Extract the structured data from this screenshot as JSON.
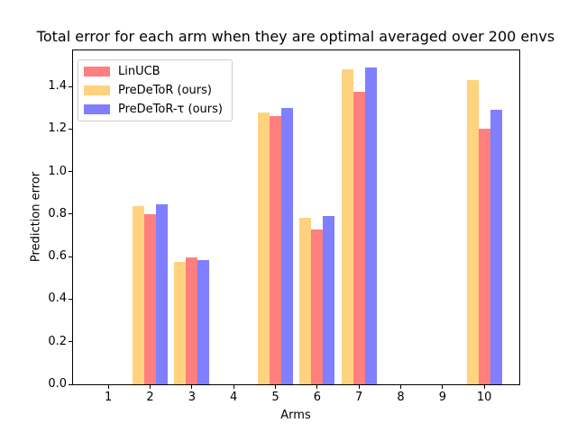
{
  "chart_data": {
    "type": "bar",
    "title": "Total error for each arm when they are optimal averaged over 200 envs",
    "xlabel": "Arms",
    "ylabel": "Prediction error",
    "categories": [
      "1",
      "2",
      "3",
      "4",
      "5",
      "6",
      "7",
      "8",
      "9",
      "10"
    ],
    "series": [
      {
        "name": "LinUCB",
        "color": "#ff7f7f",
        "values": [
          0,
          0.8,
          0.595,
          0,
          1.26,
          0.73,
          1.375,
          0,
          0,
          1.2
        ]
      },
      {
        "name": "PreDeToR (ours)",
        "color": "#ffd27f",
        "values": [
          0,
          0.84,
          0.575,
          0,
          1.28,
          0.785,
          1.48,
          0,
          0,
          1.43
        ]
      },
      {
        "name": "PreDeToR-τ (ours)",
        "color": "#7f7fff",
        "values": [
          0,
          0.845,
          0.585,
          0,
          1.3,
          0.79,
          1.49,
          0,
          0,
          1.29
        ]
      }
    ],
    "group_order": [
      1,
      0,
      2
    ],
    "ylim": [
      0,
      1.57
    ],
    "yticks": [
      0.0,
      0.2,
      0.4,
      0.6,
      0.8,
      1.0,
      1.2,
      1.4
    ],
    "legend_position": "upper left",
    "grid": false
  }
}
